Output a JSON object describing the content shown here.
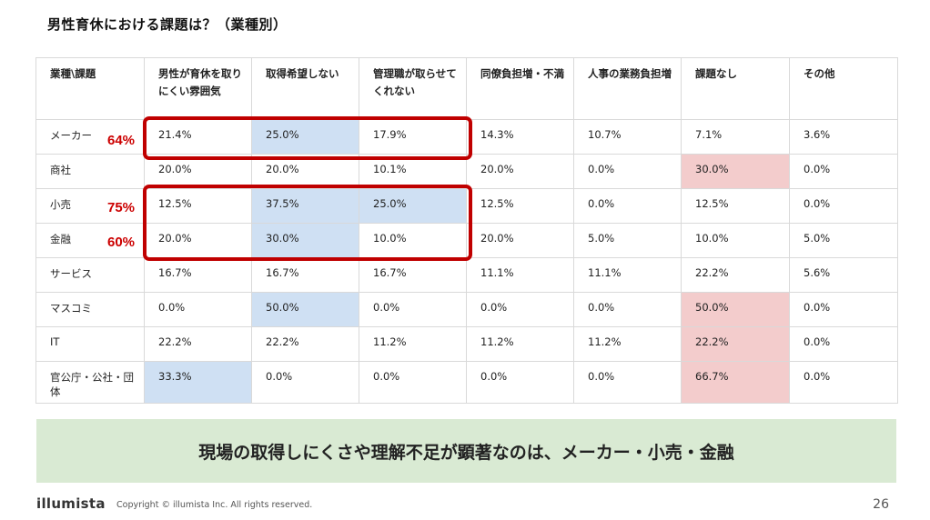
{
  "title": "男性育休における課題は？（業種別）",
  "table": {
    "headers": [
      "業種\\課題",
      "男性が育休を取りにくい雰囲気",
      "取得希望しない",
      "管理職が取らせてくれない",
      "同僚負担増・不満",
      "人事の業務負担増",
      "課題なし",
      "その他"
    ],
    "rows": [
      {
        "label": "メーカー",
        "cells": [
          "21.4%",
          "25.0%",
          "17.9%",
          "14.3%",
          "10.7%",
          "7.1%",
          "3.6%"
        ]
      },
      {
        "label": "商社",
        "cells": [
          "20.0%",
          "20.0%",
          "10.1%",
          "20.0%",
          "0.0%",
          "30.0%",
          "0.0%"
        ]
      },
      {
        "label": "小売",
        "cells": [
          "12.5%",
          "37.5%",
          "25.0%",
          "12.5%",
          "0.0%",
          "12.5%",
          "0.0%"
        ]
      },
      {
        "label": "金融",
        "cells": [
          "20.0%",
          "30.0%",
          "10.0%",
          "20.0%",
          "5.0%",
          "10.0%",
          "5.0%"
        ]
      },
      {
        "label": "サービス",
        "cells": [
          "16.7%",
          "16.7%",
          "16.7%",
          "11.1%",
          "11.1%",
          "22.2%",
          "5.6%"
        ]
      },
      {
        "label": "マスコミ",
        "cells": [
          "0.0%",
          "50.0%",
          "0.0%",
          "0.0%",
          "0.0%",
          "50.0%",
          "0.0%"
        ]
      },
      {
        "label": "IT",
        "cells": [
          "22.2%",
          "22.2%",
          "11.2%",
          "11.2%",
          "11.2%",
          "22.2%",
          "0.0%"
        ]
      },
      {
        "label": "官公庁・公社・団体",
        "cells": [
          "33.3%",
          "0.0%",
          "0.0%",
          "0.0%",
          "0.0%",
          "66.7%",
          "0.0%"
        ]
      }
    ],
    "highlight_colors": {
      "blue": "#cfe0f3",
      "pink": "#f3cccc"
    }
  },
  "annotations": {
    "maker": "64%",
    "retail": "75%",
    "finance": "60%",
    "box_color": "#c00000"
  },
  "conclusion": "現場の取得しにくさや理解不足が顕著なのは、メーカー・小売・金融",
  "footer": {
    "logo": "illumista",
    "copyright": "Copyright © illumista Inc. All rights reserved.",
    "page_number": "26"
  }
}
